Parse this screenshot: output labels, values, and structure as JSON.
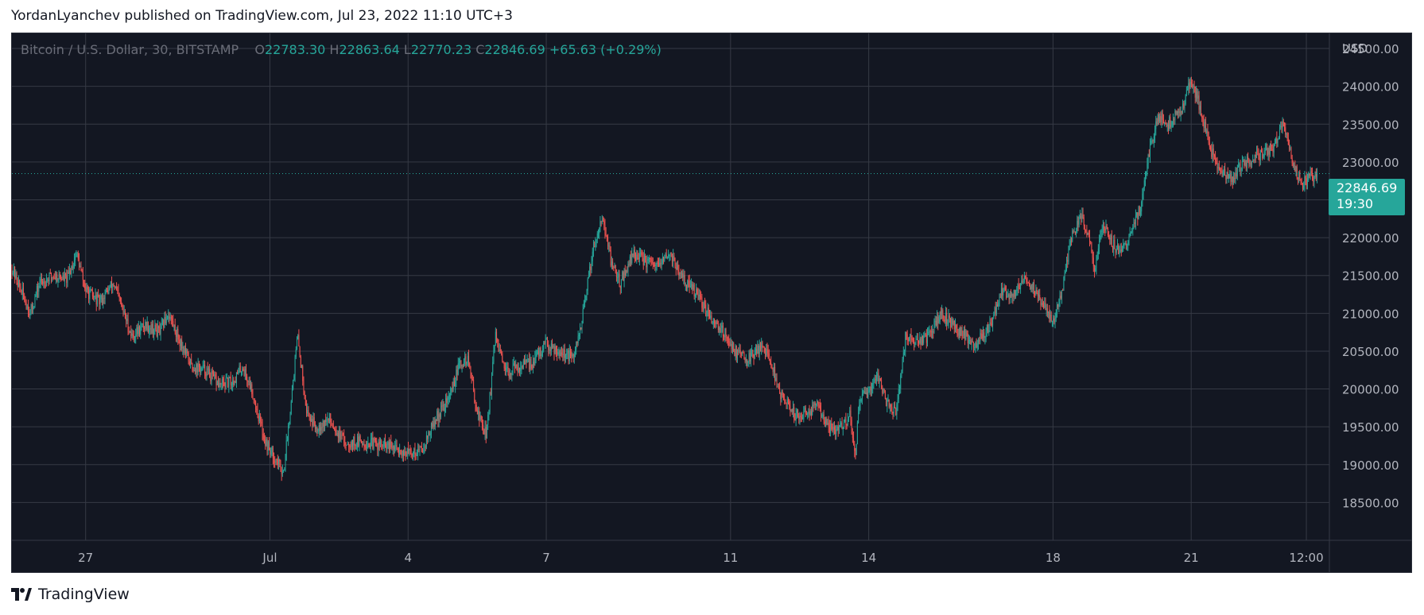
{
  "header": {
    "text": "YordanLyanchev published on TradingView.com, Jul 23, 2022 11:10 UTC+3"
  },
  "legend": {
    "symbol": "Bitcoin / U.S. Dollar, 30, BITSTAMP",
    "open_label": "O",
    "open": "22783.30",
    "high_label": "H",
    "high": "22863.64",
    "low_label": "L",
    "low": "22770.23",
    "close_label": "C",
    "close": "22846.69",
    "change": "+65.63 (+0.29%)"
  },
  "price_tag": {
    "price": "22846.69",
    "countdown": "19:30"
  },
  "footer": {
    "brand": "TradingView",
    "logo_icon": "tradingview-logo-icon"
  },
  "colors": {
    "background": "#131722",
    "grid": "#363a45",
    "up": "#26a69a",
    "down": "#ef5350",
    "text": "#b2b5be"
  },
  "chart_data": {
    "type": "candlestick",
    "symbol": "Bitcoin / U.S. Dollar",
    "interval": "30",
    "exchange": "BITSTAMP",
    "currency_label": "USD",
    "ylim": [
      18000,
      24700
    ],
    "y_ticks": [
      24500,
      24000,
      23500,
      23000,
      22500,
      22000,
      21500,
      21000,
      20500,
      20000,
      19500,
      19000,
      18500
    ],
    "x_ticks": [
      {
        "label": "27",
        "day": 26.0
      },
      {
        "label": "Jul",
        "day": 30.0
      },
      {
        "label": "4",
        "day": 33.0
      },
      {
        "label": "7",
        "day": 36.0
      },
      {
        "label": "11",
        "day": 40.0
      },
      {
        "label": "14",
        "day": 43.0
      },
      {
        "label": "18",
        "day": 47.0
      },
      {
        "label": "21",
        "day": 50.0
      },
      {
        "label": "12:00",
        "day": 52.5
      }
    ],
    "xlim_days": [
      24.4,
      53.0
    ],
    "last_price": 22846.69,
    "price_path": [
      [
        24.4,
        21600
      ],
      [
        24.6,
        21300
      ],
      [
        24.8,
        21000
      ],
      [
        25.0,
        21400
      ],
      [
        25.3,
        21500
      ],
      [
        25.6,
        21450
      ],
      [
        25.8,
        21800
      ],
      [
        26.0,
        21300
      ],
      [
        26.3,
        21150
      ],
      [
        26.6,
        21400
      ],
      [
        26.8,
        21050
      ],
      [
        27.0,
        20700
      ],
      [
        27.3,
        20850
      ],
      [
        27.6,
        20750
      ],
      [
        27.8,
        21000
      ],
      [
        28.0,
        20700
      ],
      [
        28.3,
        20300
      ],
      [
        28.6,
        20250
      ],
      [
        28.9,
        20050
      ],
      [
        29.2,
        20100
      ],
      [
        29.4,
        20300
      ],
      [
        29.6,
        20000
      ],
      [
        29.9,
        19300
      ],
      [
        30.1,
        19100
      ],
      [
        30.3,
        18900
      ],
      [
        30.6,
        20700
      ],
      [
        30.8,
        19700
      ],
      [
        31.0,
        19500
      ],
      [
        31.3,
        19600
      ],
      [
        31.6,
        19300
      ],
      [
        32.0,
        19300
      ],
      [
        32.5,
        19250
      ],
      [
        33.0,
        19150
      ],
      [
        33.3,
        19200
      ],
      [
        33.6,
        19600
      ],
      [
        33.9,
        19900
      ],
      [
        34.1,
        20300
      ],
      [
        34.3,
        20400
      ],
      [
        34.5,
        19700
      ],
      [
        34.7,
        19400
      ],
      [
        34.9,
        20700
      ],
      [
        35.1,
        20200
      ],
      [
        35.4,
        20300
      ],
      [
        35.7,
        20350
      ],
      [
        36.0,
        20600
      ],
      [
        36.3,
        20500
      ],
      [
        36.6,
        20400
      ],
      [
        36.8,
        21000
      ],
      [
        37.0,
        21800
      ],
      [
        37.2,
        22300
      ],
      [
        37.4,
        21700
      ],
      [
        37.6,
        21400
      ],
      [
        37.9,
        21800
      ],
      [
        38.1,
        21700
      ],
      [
        38.4,
        21600
      ],
      [
        38.7,
        21800
      ],
      [
        38.9,
        21500
      ],
      [
        39.2,
        21300
      ],
      [
        39.5,
        21000
      ],
      [
        39.8,
        20800
      ],
      [
        40.1,
        20500
      ],
      [
        40.4,
        20400
      ],
      [
        40.7,
        20600
      ],
      [
        40.9,
        20300
      ],
      [
        41.1,
        19900
      ],
      [
        41.4,
        19650
      ],
      [
        41.7,
        19700
      ],
      [
        41.9,
        19800
      ],
      [
        42.1,
        19500
      ],
      [
        42.3,
        19450
      ],
      [
        42.6,
        19650
      ],
      [
        42.7,
        19100
      ],
      [
        42.8,
        19800
      ],
      [
        43.0,
        20000
      ],
      [
        43.2,
        20200
      ],
      [
        43.4,
        19800
      ],
      [
        43.6,
        19700
      ],
      [
        43.8,
        20700
      ],
      [
        44.0,
        20600
      ],
      [
        44.3,
        20700
      ],
      [
        44.6,
        21000
      ],
      [
        44.9,
        20800
      ],
      [
        45.1,
        20700
      ],
      [
        45.3,
        20600
      ],
      [
        45.6,
        20800
      ],
      [
        45.9,
        21300
      ],
      [
        46.1,
        21200
      ],
      [
        46.4,
        21500
      ],
      [
        46.6,
        21300
      ],
      [
        46.8,
        21100
      ],
      [
        47.0,
        20900
      ],
      [
        47.2,
        21300
      ],
      [
        47.4,
        22000
      ],
      [
        47.6,
        22300
      ],
      [
        47.8,
        22000
      ],
      [
        47.9,
        21600
      ],
      [
        48.1,
        22200
      ],
      [
        48.3,
        21900
      ],
      [
        48.5,
        21800
      ],
      [
        48.7,
        22100
      ],
      [
        48.9,
        22400
      ],
      [
        49.1,
        23200
      ],
      [
        49.3,
        23600
      ],
      [
        49.5,
        23500
      ],
      [
        49.8,
        23700
      ],
      [
        50.0,
        24100
      ],
      [
        50.2,
        23700
      ],
      [
        50.4,
        23200
      ],
      [
        50.6,
        22900
      ],
      [
        50.9,
        22800
      ],
      [
        51.2,
        23000
      ],
      [
        51.5,
        23100
      ],
      [
        51.8,
        23200
      ],
      [
        52.0,
        23500
      ],
      [
        52.2,
        23000
      ],
      [
        52.4,
        22700
      ],
      [
        52.6,
        22800
      ],
      [
        52.75,
        22846.69
      ]
    ]
  }
}
